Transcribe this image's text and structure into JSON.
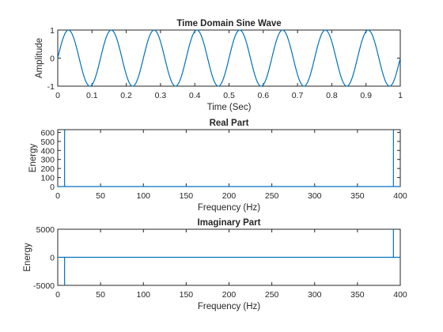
{
  "chart_data": [
    {
      "type": "line",
      "title": "Time Domain Sine Wave",
      "xlabel": "Time (Sec)",
      "ylabel": "Amplitude",
      "xlim": [
        0,
        1
      ],
      "ylim": [
        -1,
        1
      ],
      "xticks": [
        0,
        0.1,
        0.2,
        0.3,
        0.4,
        0.5,
        0.6,
        0.7,
        0.8,
        0.9,
        1
      ],
      "xtick_labels": [
        "0",
        "0.1",
        "0.2",
        "0.3",
        "0.4",
        "0.5",
        "0.6",
        "0.7",
        "0.8",
        "0.9",
        "1"
      ],
      "yticks": [
        -1,
        0,
        1
      ],
      "ytick_labels": [
        "-1",
        "0",
        "1"
      ],
      "series": [
        {
          "function": "sin(2*pi*f*t)",
          "frequency_hz": 8,
          "amplitude": 1,
          "color": "#0072bd"
        }
      ]
    },
    {
      "type": "line",
      "title": "Real Part",
      "xlabel": "Frequency (Hz)",
      "ylabel": "Energy",
      "xlim": [
        0,
        400
      ],
      "ylim": [
        0,
        630
      ],
      "xticks": [
        0,
        50,
        100,
        150,
        200,
        250,
        300,
        350,
        400
      ],
      "xtick_labels": [
        "0",
        "50",
        "100",
        "150",
        "200",
        "250",
        "300",
        "350",
        "400"
      ],
      "yticks": [
        0,
        100,
        200,
        300,
        400,
        500,
        600
      ],
      "ytick_labels": [
        "0",
        "100",
        "200",
        "300",
        "400",
        "500",
        "600"
      ],
      "series": [
        {
          "x": [
            0,
            8,
            8,
            8,
            392,
            392,
            392,
            400
          ],
          "y": [
            0,
            0,
            630,
            0,
            0,
            630,
            0,
            0
          ],
          "color": "#0072bd"
        }
      ]
    },
    {
      "type": "line",
      "title": "Imaginary Part",
      "xlabel": "Frequency (Hz)",
      "ylabel": "Energy",
      "xlim": [
        0,
        400
      ],
      "ylim": [
        -5000,
        5000
      ],
      "xticks": [
        0,
        50,
        100,
        150,
        200,
        250,
        300,
        350,
        400
      ],
      "xtick_labels": [
        "0",
        "50",
        "100",
        "150",
        "200",
        "250",
        "300",
        "350",
        "400"
      ],
      "yticks": [
        -5000,
        0,
        5000
      ],
      "ytick_labels": [
        "-5000",
        "0",
        "5000"
      ],
      "series": [
        {
          "x": [
            0,
            8,
            8,
            8,
            392,
            392,
            392,
            400
          ],
          "y": [
            0,
            0,
            -5000,
            0,
            0,
            5000,
            0,
            0
          ],
          "color": "#0072bd"
        }
      ]
    }
  ]
}
